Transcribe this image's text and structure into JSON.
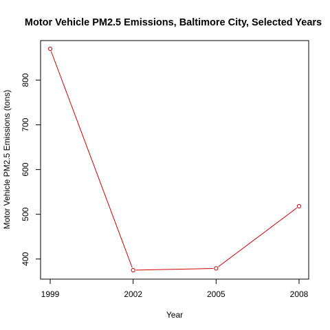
{
  "chart_data": {
    "type": "line",
    "title": "Motor Vehicle PM2.5 Emissions, Baltimore City, Selected Years",
    "xlabel": "Year",
    "ylabel": "Motor Vehicle PM2.5 Emissions (tons)",
    "x": [
      1999,
      2002,
      2005,
      2008
    ],
    "series": [
      {
        "values": [
          870,
          375,
          379,
          518
        ],
        "color": "#cc0000",
        "marker": "open-circle"
      }
    ],
    "xticks": [
      1999,
      2002,
      2005,
      2008
    ],
    "yticks": [
      400,
      500,
      600,
      700,
      800
    ],
    "xlim": [
      1999,
      2008
    ],
    "ylim": [
      375,
      870
    ],
    "grid": false,
    "legend": "none"
  }
}
